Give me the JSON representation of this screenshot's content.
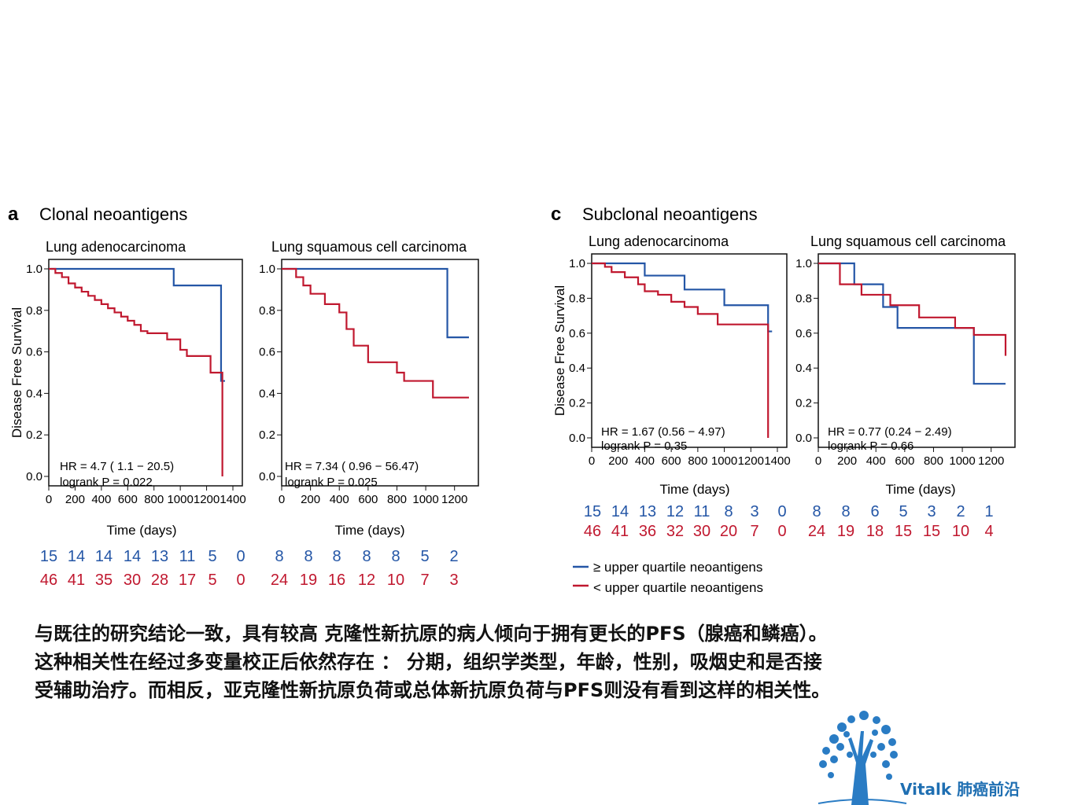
{
  "colors": {
    "upper": "#2456a6",
    "lower": "#c0182f",
    "logo": "#1f6fb2"
  },
  "panels": [
    {
      "letter": "a",
      "title": "Clonal neoantigens"
    },
    {
      "letter": "c",
      "title": "Subclonal neoantigens"
    }
  ],
  "legend": {
    "upper": "≥  upper quartile neoantigens",
    "lower": "< upper quartile neoantigens"
  },
  "caption": {
    "line1": "与既往的研究结论一致，具有较高 克隆性新抗原的病人倾向于拥有更长的PFS（腺癌和鳞癌）。",
    "line2": "这种相关性在经过多变量校正后依然存在 ：  分期，组织学类型，年龄，性别，吸烟史和是否接",
    "line3": "受辅助治疗。而相反，亚克隆性新抗原负荷或总体新抗原负荷与PFS则没有看到这样的相关性。"
  },
  "logo": {
    "text": "Vitalk 肺癌前沿"
  },
  "chart_data": [
    {
      "type": "line",
      "panel": "a",
      "title": "Lung adenocarcinoma",
      "xlabel": "Time (days)",
      "ylabel": "Disease Free Survival",
      "xlim": [
        0,
        1400
      ],
      "ylim": [
        0,
        1
      ],
      "xticks": [
        "0",
        "200",
        "400",
        "600",
        "800",
        "1000",
        "1200",
        "1400"
      ],
      "yticks": [
        "0.0",
        "0.2",
        "0.4",
        "0.6",
        "0.8",
        "1.0"
      ],
      "hr_text": "HR =  4.7 ( 1.1 − 20.5)",
      "p_text": "logrank P = 0.022",
      "series": [
        {
          "key": "upper",
          "x": [
            0,
            950,
            1310,
            1340
          ],
          "y": [
            1.0,
            0.92,
            0.46,
            0.46
          ]
        },
        {
          "key": "lower",
          "x": [
            0,
            50,
            100,
            150,
            200,
            250,
            300,
            350,
            400,
            450,
            500,
            550,
            600,
            650,
            700,
            750,
            900,
            1000,
            1050,
            1230,
            1320,
            1320
          ],
          "y": [
            1.0,
            0.98,
            0.96,
            0.93,
            0.91,
            0.89,
            0.87,
            0.85,
            0.83,
            0.81,
            0.79,
            0.77,
            0.75,
            0.73,
            0.7,
            0.69,
            0.66,
            0.61,
            0.58,
            0.5,
            0.5,
            0.0
          ]
        }
      ],
      "risk_upper": [
        "15",
        "14",
        "14",
        "14",
        "13",
        "11",
        "5",
        "0"
      ],
      "risk_lower": [
        "46",
        "41",
        "35",
        "30",
        "28",
        "17",
        "5",
        "0"
      ]
    },
    {
      "type": "line",
      "panel": "a",
      "title": "Lung squamous cell carcinoma",
      "xlabel": "Time (days)",
      "ylabel": "",
      "xlim": [
        0,
        1300
      ],
      "ylim": [
        0,
        1
      ],
      "xticks": [
        "0",
        "200",
        "400",
        "600",
        "800",
        "1000",
        "1200"
      ],
      "yticks": [
        "0.0",
        "0.2",
        "0.4",
        "0.6",
        "0.8",
        "1.0"
      ],
      "hr_text": "HR =  7.34 ( 0.96 − 56.47)",
      "p_text": "logrank P = 0.025",
      "series": [
        {
          "key": "upper",
          "x": [
            0,
            1150,
            1300
          ],
          "y": [
            1.0,
            0.67,
            0.67
          ]
        },
        {
          "key": "lower",
          "x": [
            0,
            100,
            150,
            200,
            300,
            400,
            450,
            500,
            600,
            700,
            800,
            850,
            1050,
            1300
          ],
          "y": [
            1.0,
            0.96,
            0.92,
            0.88,
            0.83,
            0.79,
            0.71,
            0.63,
            0.55,
            0.55,
            0.5,
            0.46,
            0.38,
            0.38
          ]
        }
      ],
      "risk_upper": [
        "8",
        "8",
        "8",
        "8",
        "8",
        "5",
        "2"
      ],
      "risk_lower": [
        "24",
        "19",
        "16",
        "12",
        "10",
        "7",
        "3"
      ]
    },
    {
      "type": "line",
      "panel": "c",
      "title": "Lung adenocarcinoma",
      "xlabel": "Time (days)",
      "ylabel": "Disease Free Survival",
      "xlim": [
        0,
        1400
      ],
      "ylim": [
        0,
        1
      ],
      "xticks": [
        "0",
        "200",
        "400",
        "600",
        "800",
        "1000",
        "1200",
        "1400"
      ],
      "yticks": [
        "0.0",
        "0.2",
        "0.4",
        "0.6",
        "0.8",
        "1.0"
      ],
      "hr_text": "HR = 1.67 (0.56 − 4.97)",
      "p_text": "logrank P = 0.35",
      "series": [
        {
          "key": "upper",
          "x": [
            0,
            400,
            700,
            1000,
            1330,
            1360
          ],
          "y": [
            1.0,
            0.93,
            0.85,
            0.76,
            0.61,
            0.61
          ]
        },
        {
          "key": "lower",
          "x": [
            0,
            100,
            150,
            250,
            350,
            400,
            500,
            600,
            700,
            800,
            950,
            1330,
            1330
          ],
          "y": [
            1.0,
            0.98,
            0.95,
            0.92,
            0.88,
            0.84,
            0.82,
            0.78,
            0.75,
            0.71,
            0.65,
            0.48,
            0.0
          ]
        }
      ],
      "risk_upper": [
        "15",
        "14",
        "13",
        "12",
        "11",
        "8",
        "3",
        "0"
      ],
      "risk_lower": [
        "46",
        "41",
        "36",
        "32",
        "30",
        "20",
        "7",
        "0"
      ]
    },
    {
      "type": "line",
      "panel": "c",
      "title": "Lung squamous cell carcinoma",
      "xlabel": "Time (days)",
      "ylabel": "",
      "xlim": [
        0,
        1300
      ],
      "ylim": [
        0,
        1
      ],
      "xticks": [
        "0",
        "200",
        "400",
        "600",
        "800",
        "1000",
        "1200"
      ],
      "yticks": [
        "0.0",
        "0.2",
        "0.4",
        "0.6",
        "0.8",
        "1.0"
      ],
      "hr_text": "HR = 0.77 (0.24 − 2.49)",
      "p_text": "logrank P = 0.66",
      "series": [
        {
          "key": "upper",
          "x": [
            0,
            250,
            450,
            550,
            1080,
            1300
          ],
          "y": [
            1.0,
            0.88,
            0.75,
            0.63,
            0.31,
            0.31
          ]
        },
        {
          "key": "lower",
          "x": [
            0,
            150,
            300,
            500,
            700,
            950,
            1080,
            1300
          ],
          "y": [
            1.0,
            0.88,
            0.82,
            0.76,
            0.69,
            0.63,
            0.59,
            0.47
          ]
        }
      ],
      "risk_upper": [
        "8",
        "8",
        "6",
        "5",
        "3",
        "2",
        "1"
      ],
      "risk_lower": [
        "24",
        "19",
        "18",
        "15",
        "15",
        "10",
        "4"
      ]
    }
  ]
}
